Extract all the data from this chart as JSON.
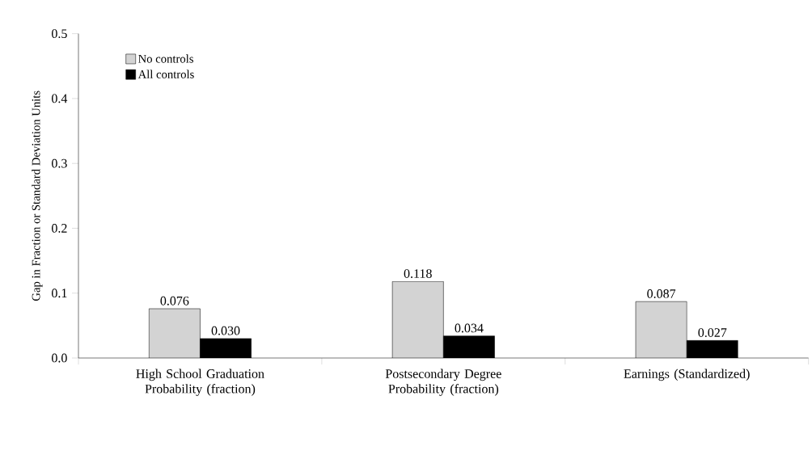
{
  "chart_data": {
    "type": "bar",
    "ylabel": "Gap in Fraction or Standard Deviation Units",
    "categories": [
      "High School Graduation Probability (fraction)",
      "Postsecondary Degree Probability (fraction)",
      "Earnings (Standardized)"
    ],
    "series": [
      {
        "name": "No controls",
        "color": "#d3d3d3",
        "values": [
          0.076,
          0.118,
          0.087
        ],
        "value_labels": [
          "0.076",
          "0.118",
          "0.087"
        ]
      },
      {
        "name": "All controls",
        "color": "#000000",
        "values": [
          0.03,
          0.034,
          0.027
        ],
        "value_labels": [
          "0.030",
          "0.034",
          "0.027"
        ]
      }
    ],
    "ylim": [
      0,
      0.5
    ],
    "yticks": [
      {
        "value": 0,
        "label": "0.0"
      },
      {
        "value": 0.1,
        "label": "0.1"
      },
      {
        "value": 0.2,
        "label": "0.2"
      },
      {
        "value": 0.3,
        "label": "0.3"
      },
      {
        "value": 0.4,
        "label": "0.4"
      },
      {
        "value": 0.5,
        "label": "0.5"
      }
    ],
    "legend": "top left",
    "grid": false
  }
}
